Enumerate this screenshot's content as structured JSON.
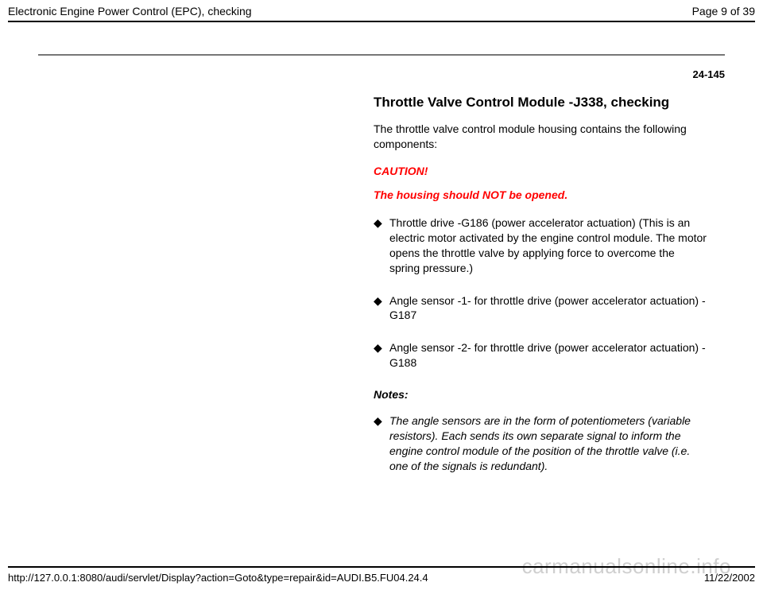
{
  "header": {
    "title": "Electronic Engine Power Control (EPC), checking",
    "page_indicator": "Page 9 of 39"
  },
  "page_number": "24-145",
  "content": {
    "heading": "Throttle Valve Control Module -J338, checking",
    "intro": "The throttle valve control module housing contains the following components:",
    "caution_label": "CAUTION!",
    "caution_text": "The housing should NOT be opened.",
    "bullets": [
      "Throttle drive -G186 (power accelerator actuation) (This is an electric motor activated by the engine control module. The motor opens the throttle valve by applying force to overcome the spring pressure.)",
      "Angle sensor -1- for throttle drive (power accelerator actuation) -G187",
      "Angle sensor -2- for throttle drive (power accelerator actuation) -G188"
    ],
    "notes_label": "Notes:",
    "notes_bullets": [
      "The angle sensors are in the form of potentiometers (variable resistors). Each sends its own separate signal to inform the engine control module of the position of the throttle valve (i.e. one of the signals is redundant)."
    ]
  },
  "footer": {
    "url": "http://127.0.0.1:8080/audi/servlet/Display?action=Goto&type=repair&id=AUDI.B5.FU04.24.4",
    "date": "11/22/2002"
  },
  "watermark": "carmanualsonline.info",
  "colors": {
    "caution": "#ff0000",
    "text": "#000000",
    "rule": "#000000",
    "hr": "#777777",
    "watermark": "#cfcfcf",
    "background": "#ffffff"
  }
}
